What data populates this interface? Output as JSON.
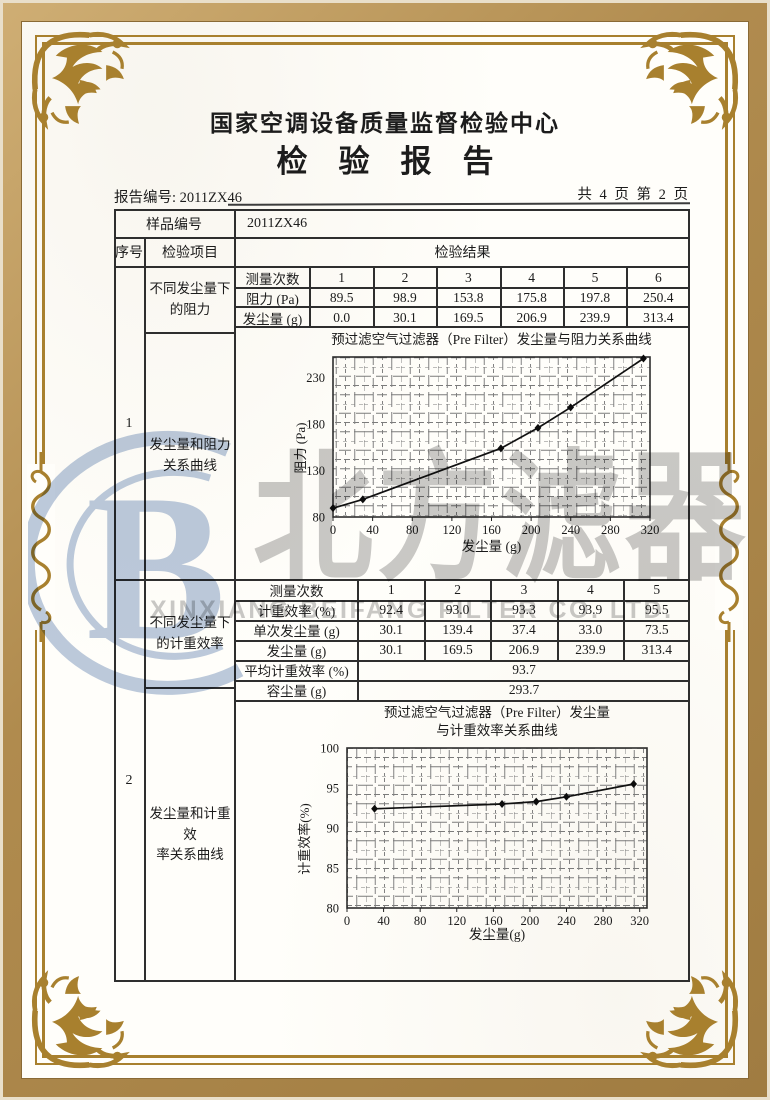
{
  "header": {
    "org": "国家空调设备质量监督检验中心",
    "title": "检　验　报　告",
    "report_no_label": "报告编号:",
    "report_no": "2011ZX46",
    "page_info": "共 4 页 第 2 页"
  },
  "table": {
    "sample_label": "样品编号",
    "sample_value": "2011ZX46",
    "col_seq": "序号",
    "col_item": "检验项目",
    "col_result": "检验结果",
    "section1": {
      "seq": "1",
      "item_top": "不同发尘量下\n的阻力",
      "item_bottom": "发尘量和阻力\n关系曲线"
    },
    "section2": {
      "seq": "2",
      "item_top": "不同发尘量下\n的计重效率",
      "item_bottom": "发尘量和计重效\n率关系曲线"
    },
    "resistance": {
      "rows": [
        {
          "label": "测量次数",
          "cells": [
            "1",
            "2",
            "3",
            "4",
            "5",
            "6"
          ]
        },
        {
          "label": "阻力 (Pa)",
          "cells": [
            "89.5",
            "98.9",
            "153.8",
            "175.8",
            "197.8",
            "250.4"
          ]
        },
        {
          "label": "发尘量 (g)",
          "cells": [
            "0.0",
            "30.1",
            "169.5",
            "206.9",
            "239.9",
            "313.4"
          ]
        }
      ]
    },
    "efficiency": {
      "rows": [
        {
          "label": "测量次数",
          "cells": [
            "1",
            "2",
            "3",
            "4",
            "5"
          ]
        },
        {
          "label": "计重效率 (%)",
          "cells": [
            "92.4",
            "93.0",
            "93.3",
            "93.9",
            "95.5"
          ]
        },
        {
          "label": "单次发尘量 (g)",
          "cells": [
            "30.1",
            "139.4",
            "37.4",
            "33.0",
            "73.5"
          ]
        },
        {
          "label": "发尘量 (g)",
          "cells": [
            "30.1",
            "169.5",
            "206.9",
            "239.9",
            "313.4"
          ]
        }
      ],
      "avg_label": "平均计重效率 (%)",
      "avg_value": "93.7",
      "capacity_label": "容尘量 (g)",
      "capacity_value": "293.7"
    }
  },
  "watermark": {
    "logo_letter": "B",
    "cn": "北方滤器",
    "en": "XINXIANG BEIFANG FILTER CO. LTD."
  },
  "colors": {
    "frame_gold": "#a8802e",
    "band_tan": "#b08b4e",
    "watermark_blue": "#bccadf",
    "watermark_gray": "#c9c9c9",
    "ink": "#1c1c1c"
  },
  "chart_data": [
    {
      "type": "line",
      "title": "预过滤空气过滤器（Pre Filter）发尘量与阻力关系曲线",
      "xlabel": "发尘量 (g)",
      "ylabel": "阻力 (Pa)",
      "x": [
        0,
        30.1,
        169.5,
        206.9,
        239.9,
        313.4
      ],
      "y": [
        89.5,
        98.9,
        153.8,
        175.8,
        197.8,
        250.4
      ],
      "xlim": [
        0,
        320
      ],
      "ylim": [
        80,
        252
      ],
      "xticks": [
        0,
        40,
        80,
        120,
        160,
        200,
        240,
        280,
        320
      ],
      "yticks": [
        80,
        130,
        180,
        230
      ],
      "grid": "dense",
      "legend": "none",
      "marker": "diamond"
    },
    {
      "type": "line",
      "title": "预过滤空气过滤器（Pre Filter）发尘量",
      "title2": "与计重效率关系曲线",
      "xlabel": "发尘量(g)",
      "ylabel": "计重效率(%)",
      "x": [
        30.1,
        169.5,
        206.9,
        239.9,
        313.4
      ],
      "y": [
        92.4,
        93.0,
        93.3,
        93.9,
        95.5
      ],
      "xlim": [
        0,
        328
      ],
      "ylim": [
        80,
        100
      ],
      "xticks": [
        0,
        40,
        80,
        120,
        160,
        200,
        240,
        280,
        320
      ],
      "yticks": [
        80,
        85,
        90,
        95,
        100
      ],
      "grid": "dense",
      "legend": "none",
      "marker": "diamond"
    }
  ]
}
